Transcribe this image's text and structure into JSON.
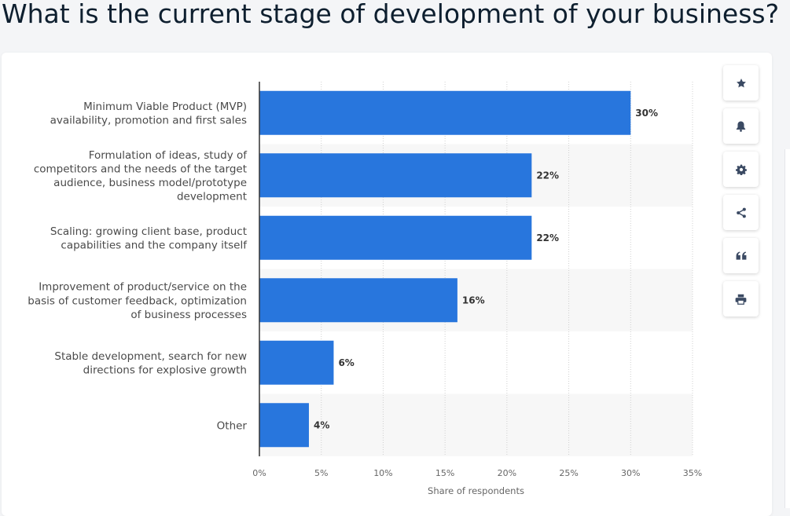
{
  "page": {
    "title": "What is the current stage of development of your business?"
  },
  "toolbar": {
    "buttons": [
      {
        "name": "favorite-button",
        "icon": "star-icon"
      },
      {
        "name": "notification-button",
        "icon": "bell-icon"
      },
      {
        "name": "settings-button",
        "icon": "gear-icon"
      },
      {
        "name": "share-button",
        "icon": "share-icon"
      },
      {
        "name": "cite-button",
        "icon": "quote-icon"
      },
      {
        "name": "print-button",
        "icon": "printer-icon"
      }
    ],
    "icon_color": "#3b4a63"
  },
  "chart_data": {
    "type": "bar",
    "orientation": "horizontal",
    "categories": [
      [
        "Minimum Viable Product (MVP)",
        "availability, promotion and first sales"
      ],
      [
        "Formulation of ideas, study of",
        "competitors and the needs of the target",
        "audience, business model/prototype",
        "development"
      ],
      [
        "Scaling: growing client base, product",
        "capabilities and the company itself"
      ],
      [
        "Improvement of product/service on the",
        "basis of customer feedback, optimization",
        "of business processes"
      ],
      [
        "Stable development, search for new",
        "directions for explosive growth"
      ],
      [
        "Other"
      ]
    ],
    "values": [
      30,
      22,
      22,
      16,
      6,
      4
    ],
    "value_labels": [
      "30%",
      "22%",
      "22%",
      "16%",
      "6%",
      "4%"
    ],
    "xlim": [
      0,
      35
    ],
    "xticks": [
      0,
      5,
      10,
      15,
      20,
      25,
      30,
      35
    ],
    "xtick_labels": [
      "0%",
      "5%",
      "10%",
      "15%",
      "20%",
      "25%",
      "30%",
      "35%"
    ],
    "xlabel": "Share of respondents",
    "ylabel": "",
    "bar_color": "#2876dd",
    "band_color": "#f7f7f7",
    "grid": true
  }
}
